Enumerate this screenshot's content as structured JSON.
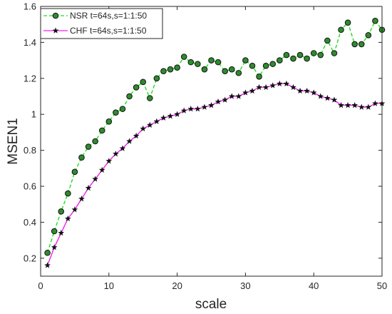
{
  "chart_data": {
    "type": "line",
    "xlabel": "scale",
    "ylabel": "MSEN1",
    "xlim": [
      0,
      50
    ],
    "ylim": [
      0.1,
      1.6
    ],
    "xticks": [
      "0",
      "10",
      "20",
      "30",
      "40",
      "50"
    ],
    "yticks": [
      "0.2",
      "0.4",
      "0.6",
      "0.8",
      "1",
      "1.2",
      "1.4",
      "1.6"
    ],
    "grid": false,
    "legend_position": "top-left",
    "x": [
      1,
      2,
      3,
      4,
      5,
      6,
      7,
      8,
      9,
      10,
      11,
      12,
      13,
      14,
      15,
      16,
      17,
      18,
      19,
      20,
      21,
      22,
      23,
      24,
      25,
      26,
      27,
      28,
      29,
      30,
      31,
      32,
      33,
      34,
      35,
      36,
      37,
      38,
      39,
      40,
      41,
      42,
      43,
      44,
      45,
      46,
      47,
      48,
      49,
      50
    ],
    "series": [
      {
        "name": "NSR t=64s,s=1:1:50",
        "color": "#22dd22",
        "marker_color": "#2e8b2e",
        "line_style": "dashed",
        "marker": "circle",
        "values": [
          0.23,
          0.35,
          0.46,
          0.56,
          0.68,
          0.76,
          0.82,
          0.85,
          0.91,
          0.96,
          1.01,
          1.03,
          1.1,
          1.15,
          1.18,
          1.09,
          1.2,
          1.24,
          1.25,
          1.26,
          1.32,
          1.29,
          1.28,
          1.25,
          1.3,
          1.29,
          1.24,
          1.25,
          1.23,
          1.3,
          1.27,
          1.21,
          1.27,
          1.28,
          1.3,
          1.33,
          1.31,
          1.33,
          1.31,
          1.34,
          1.33,
          1.41,
          1.34,
          1.47,
          1.51,
          1.39,
          1.39,
          1.44,
          1.52,
          1.47
        ]
      },
      {
        "name": "CHF t=64s,s=1:1:50",
        "color": "#ee22ee",
        "marker_color": "#111111",
        "line_style": "solid",
        "marker": "star",
        "values": [
          0.16,
          0.26,
          0.34,
          0.42,
          0.47,
          0.53,
          0.59,
          0.64,
          0.69,
          0.74,
          0.78,
          0.81,
          0.85,
          0.88,
          0.92,
          0.94,
          0.96,
          0.98,
          0.99,
          1.0,
          1.02,
          1.03,
          1.03,
          1.04,
          1.05,
          1.07,
          1.08,
          1.1,
          1.1,
          1.12,
          1.13,
          1.15,
          1.15,
          1.16,
          1.17,
          1.17,
          1.15,
          1.13,
          1.13,
          1.12,
          1.1,
          1.09,
          1.08,
          1.05,
          1.05,
          1.05,
          1.04,
          1.04,
          1.06,
          1.06
        ]
      }
    ]
  }
}
